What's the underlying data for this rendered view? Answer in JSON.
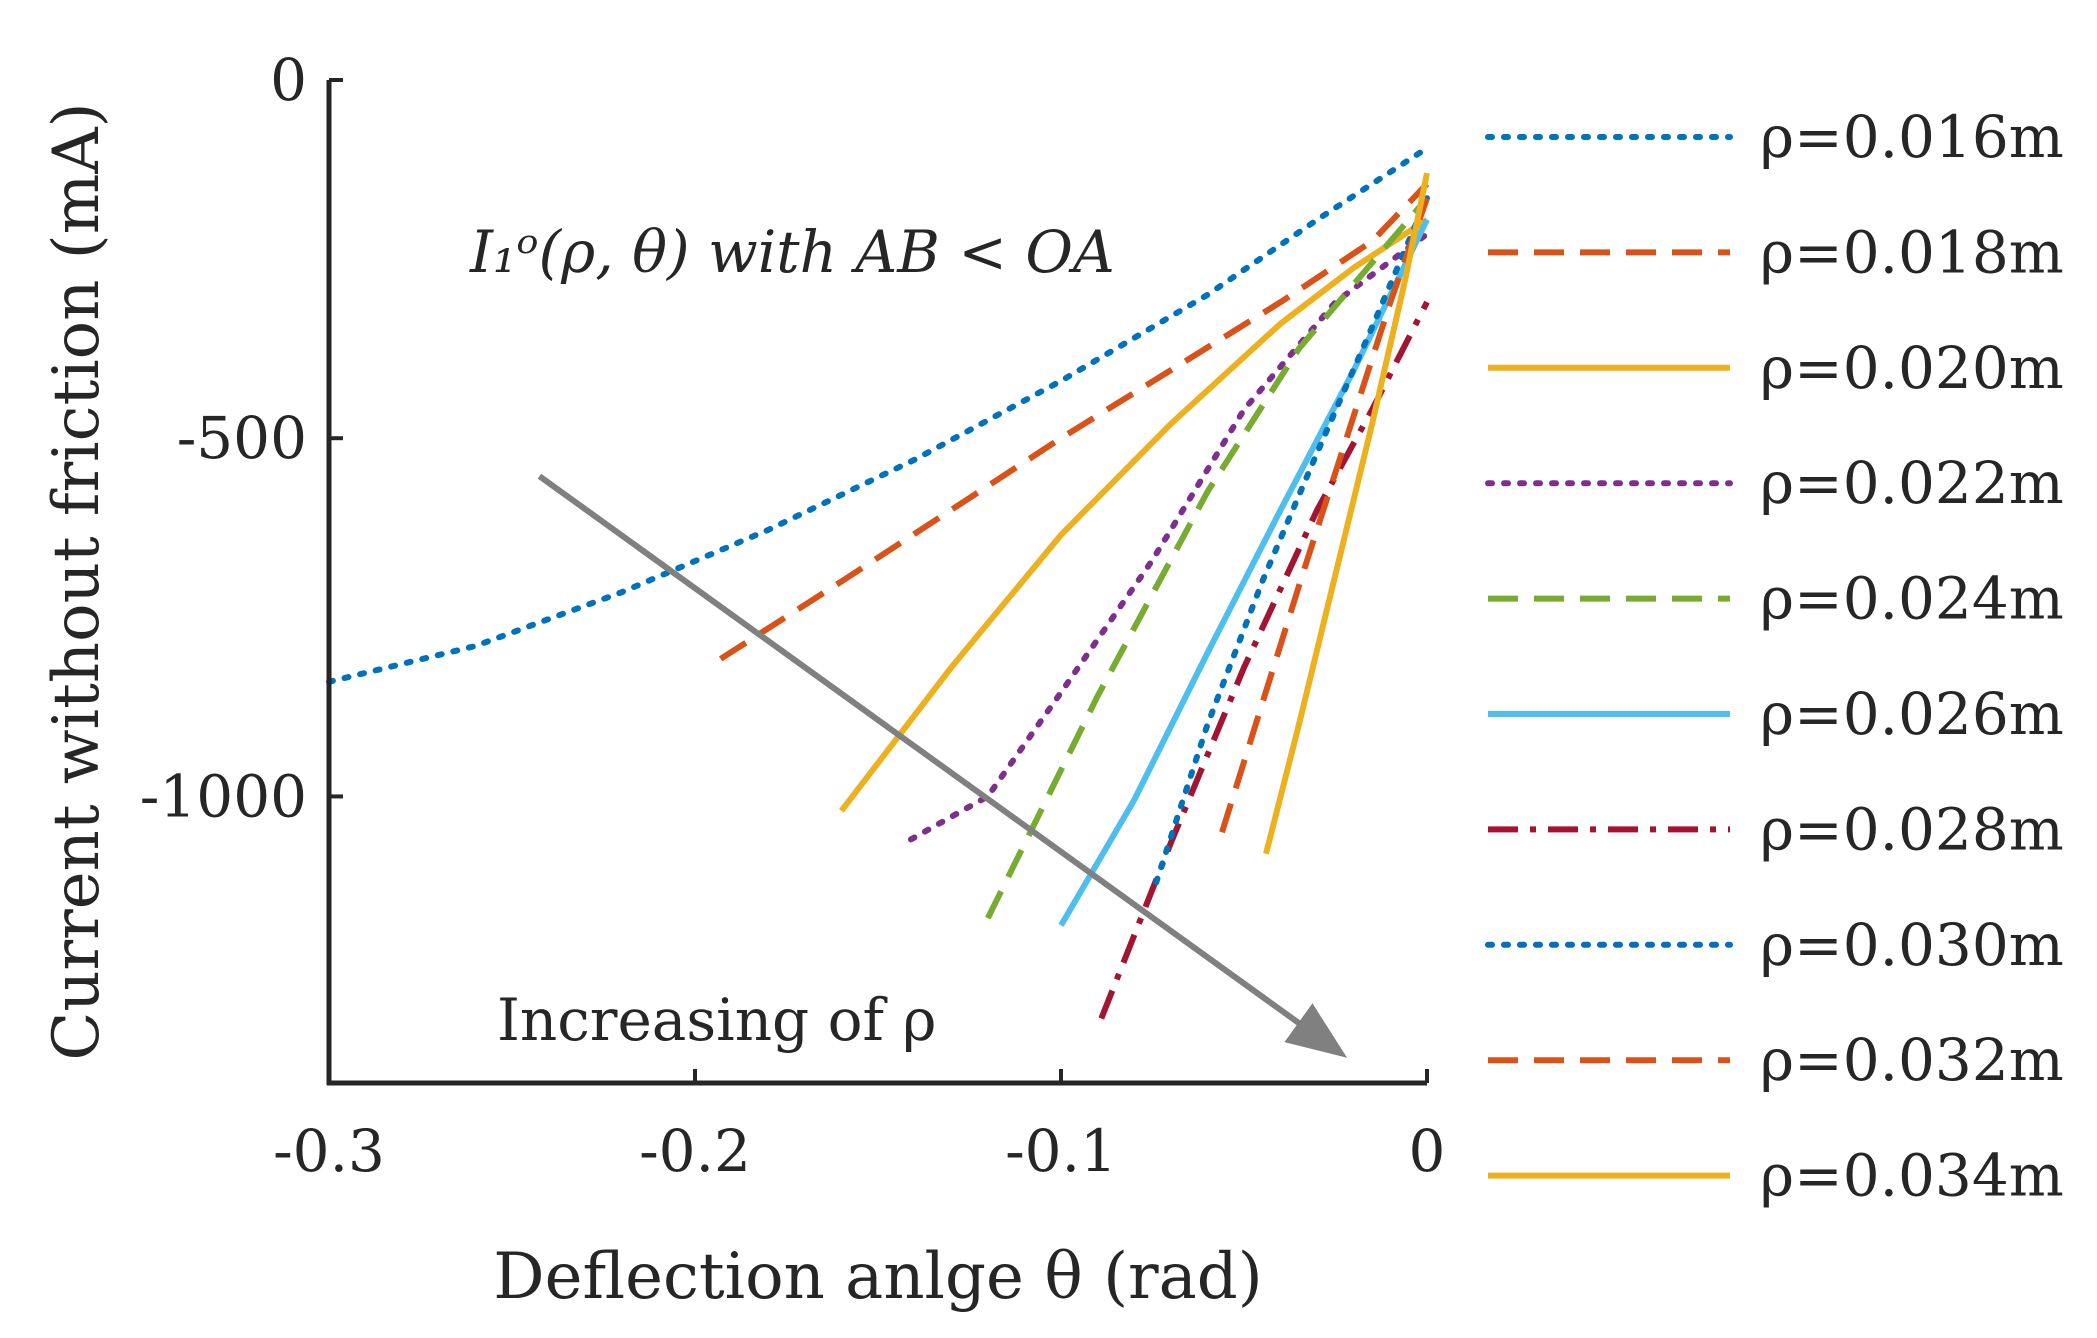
{
  "chart_data": {
    "type": "line",
    "title": "",
    "xlabel": "Deflection anlge θ (rad)",
    "ylabel": "Current without friction (mA)",
    "xlim": [
      -0.3,
      0
    ],
    "ylim": [
      -1400,
      0
    ],
    "xticks": [
      -0.3,
      -0.2,
      -0.1,
      0
    ],
    "xtick_labels": [
      "-0.3",
      "-0.2",
      "-0.1",
      "0"
    ],
    "yticks": [
      0,
      -500,
      -1000
    ],
    "ytick_labels": [
      "0",
      "-500",
      "-1000"
    ],
    "grid": false,
    "legend_position": "right",
    "annotations": {
      "formula": "I₁ᵒ(ρ, θ) with AB < OA",
      "arrow_label": "Increasing of ρ",
      "arrow": {
        "from": [
          -0.2425,
          -553
        ],
        "to": [
          -0.0245,
          -1355
        ],
        "color": "#808080"
      }
    },
    "series": [
      {
        "name": "ρ=0.016m",
        "color": "#0072BD",
        "style": "dotted",
        "x": [
          -0.3,
          -0.26,
          -0.22,
          -0.18,
          -0.14,
          -0.1,
          -0.06,
          -0.03,
          0
        ],
        "y": [
          -840,
          -790,
          -715,
          -628,
          -530,
          -420,
          -300,
          -195,
          -95
        ]
      },
      {
        "name": "ρ=0.018m",
        "color": "#D95319",
        "style": "dashed",
        "x": [
          -0.193,
          -0.16,
          -0.13,
          -0.1,
          -0.07,
          -0.04,
          -0.015,
          0
        ],
        "y": [
          -808,
          -700,
          -600,
          -500,
          -405,
          -310,
          -225,
          -145
        ]
      },
      {
        "name": "ρ=0.020m",
        "color": "#EDB120",
        "style": "solid",
        "x": [
          -0.16,
          -0.13,
          -0.1,
          -0.07,
          -0.04,
          -0.02,
          0
        ],
        "y": [
          -1020,
          -820,
          -635,
          -480,
          -340,
          -262,
          -195
        ]
      },
      {
        "name": "ρ=0.022m",
        "color": "#7E2F8E",
        "style": "dotted",
        "x": [
          -0.141,
          -0.12,
          -0.1,
          -0.075,
          -0.05,
          -0.025,
          0
        ],
        "y": [
          -1060,
          -1000,
          -855,
          -670,
          -460,
          -310,
          -215
        ]
      },
      {
        "name": "ρ=0.024m",
        "color": "#77AC30",
        "style": "dashed",
        "x": [
          -0.12,
          -0.09,
          -0.06,
          -0.035,
          -0.015,
          0
        ],
        "y": [
          -1170,
          -860,
          -575,
          -375,
          -255,
          -165
        ]
      },
      {
        "name": "ρ=0.026m",
        "color": "#4DBEEE",
        "style": "solid",
        "x": [
          -0.1,
          -0.08,
          -0.06,
          -0.04,
          -0.02,
          0
        ],
        "y": [
          -1180,
          -1005,
          -800,
          -600,
          -405,
          -195
        ]
      },
      {
        "name": "ρ=0.028m",
        "color": "#A2142F",
        "style": "dashdot",
        "x": [
          -0.089,
          -0.07,
          -0.05,
          -0.03,
          -0.015,
          0
        ],
        "y": [
          -1310,
          -1065,
          -820,
          -600,
          -460,
          -310
        ]
      },
      {
        "name": "ρ=0.030m",
        "color": "#0072BD",
        "style": "dotted",
        "x": [
          -0.074,
          -0.06,
          -0.045,
          -0.03,
          -0.015,
          0
        ],
        "y": [
          -1120,
          -900,
          -700,
          -520,
          -345,
          -165
        ]
      },
      {
        "name": "ρ=0.032m",
        "color": "#D95319",
        "style": "dashed",
        "x": [
          -0.056,
          -0.045,
          -0.034,
          -0.022,
          -0.01,
          0
        ],
        "y": [
          -1050,
          -870,
          -690,
          -500,
          -310,
          -165
        ]
      },
      {
        "name": "ρ=0.034m",
        "color": "#EDB120",
        "style": "solid",
        "x": [
          -0.044,
          -0.035,
          -0.025,
          -0.015,
          -0.006,
          0
        ],
        "y": [
          -1080,
          -900,
          -690,
          -480,
          -280,
          -130
        ]
      }
    ]
  }
}
